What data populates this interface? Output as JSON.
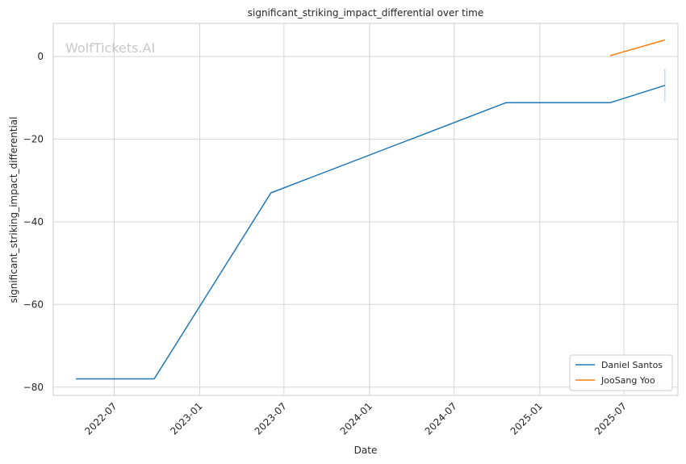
{
  "chart_data": {
    "type": "line",
    "title": "significant_striking_impact_differential over time",
    "xlabel": "Date",
    "ylabel": "significant_striking_impact_differential",
    "watermark": "WolfTickets.AI",
    "x_ticks": [
      "2022-07-01",
      "2023-01-01",
      "2023-07-01",
      "2024-01-01",
      "2024-07-01",
      "2025-01-01",
      "2025-07-01"
    ],
    "x_tick_labels": [
      "2022-07",
      "2023-01",
      "2023-07",
      "2024-01",
      "2024-07",
      "2025-01",
      "2025-07"
    ],
    "xlim": [
      "2022-02-20",
      "2025-10-25"
    ],
    "y_ticks": [
      0,
      -20,
      -40,
      -60,
      -80
    ],
    "y_tick_labels": [
      "0",
      "−20",
      "−40",
      "−60",
      "−80"
    ],
    "ylim": [
      -82,
      8
    ],
    "grid": true,
    "legend_position": "lower-right",
    "series": [
      {
        "name": "Daniel Santos",
        "color": "#1f77b4",
        "points": [
          {
            "x": "2022-04-10",
            "y": -78
          },
          {
            "x": "2022-09-25",
            "y": -78
          },
          {
            "x": "2023-06-03",
            "y": -33
          },
          {
            "x": "2024-10-20",
            "y": -11.2
          },
          {
            "x": "2025-06-01",
            "y": -11.2
          },
          {
            "x": "2025-09-27",
            "y": -7
          }
        ]
      },
      {
        "name": "JooSang Yoo",
        "color": "#ff7f0e",
        "points": [
          {
            "x": "2025-06-01",
            "y": 0.2
          },
          {
            "x": "2025-09-27",
            "y": 4
          }
        ]
      }
    ],
    "error_bar": {
      "x": "2025-09-27",
      "y_low": -11,
      "y_high": -3,
      "color": "#a6cbe3"
    }
  }
}
